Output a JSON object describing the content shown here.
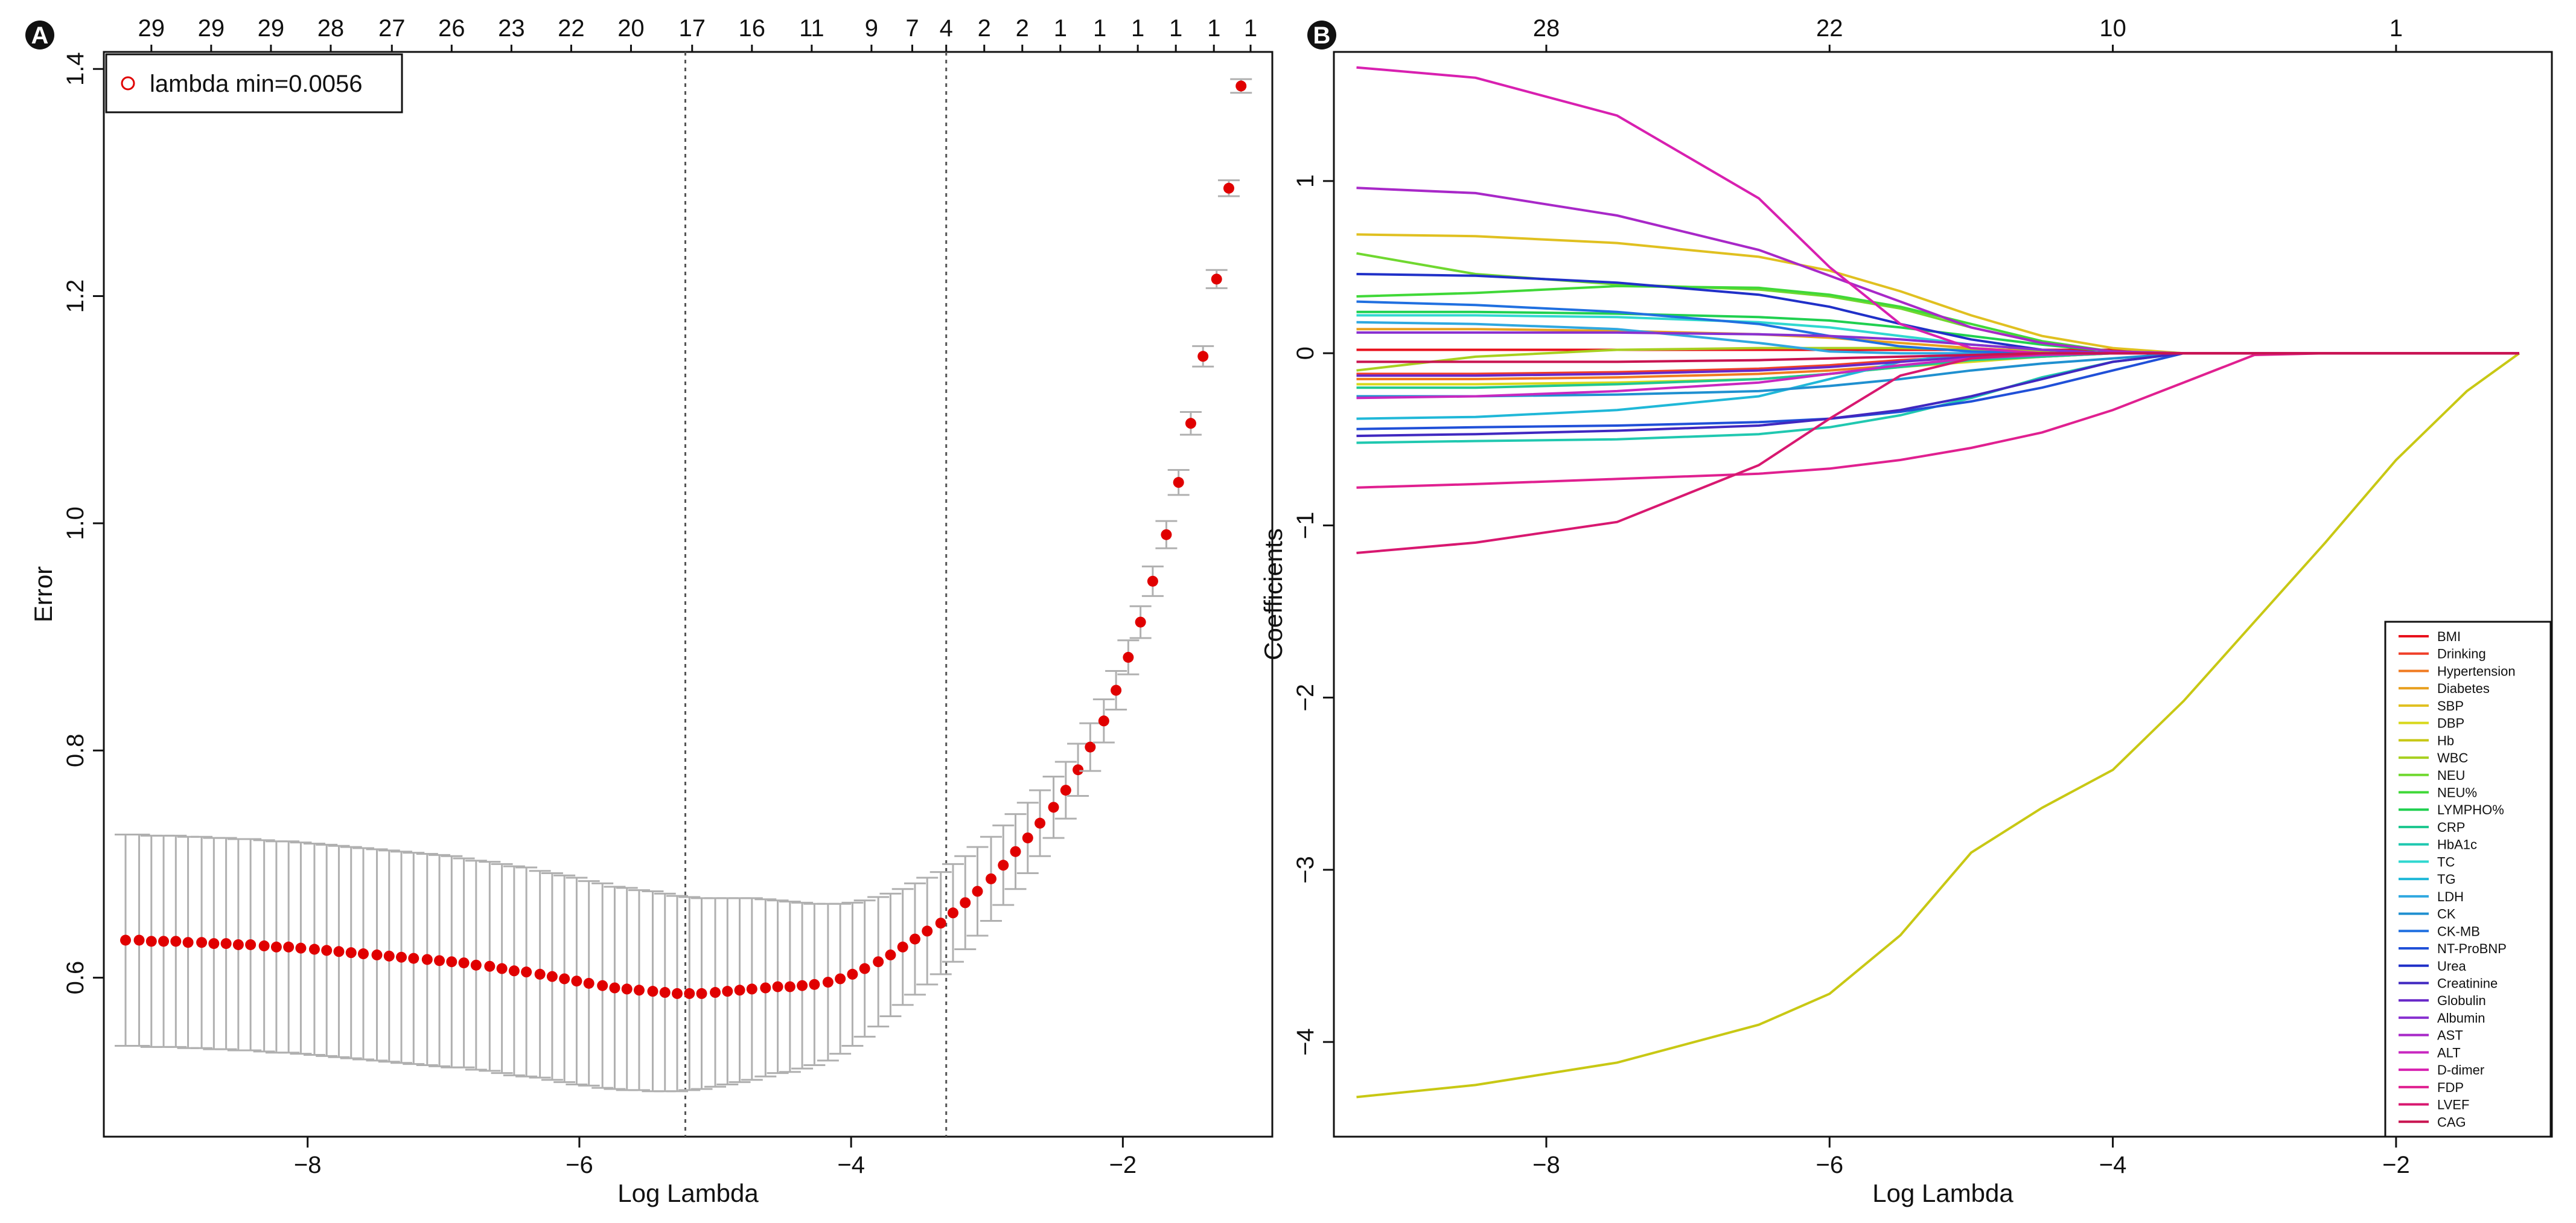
{
  "panels": {
    "a": {
      "label": "A"
    },
    "b": {
      "label": "B"
    }
  },
  "chart_data": [
    {
      "type": "scatter",
      "panel": "A",
      "xlabel": "Log Lambda",
      "ylabel": "Error",
      "xlim": [
        -9.5,
        -0.9
      ],
      "ylim": [
        0.46,
        1.415
      ],
      "x_ticks": [
        -8,
        -6,
        -4,
        -2
      ],
      "y_ticks": [
        0.6,
        0.8,
        1.0,
        1.2,
        1.4
      ],
      "x_tick_labels": [
        "−8",
        "−6",
        "−4",
        "−2"
      ],
      "y_tick_labels": [
        "0.6",
        "0.8",
        "1.0",
        "1.2",
        "1.4"
      ],
      "top_counts": [
        "29",
        "29",
        "29",
        "28",
        "27",
        "26",
        "23",
        "22",
        "20",
        "17",
        "16",
        "11",
        "9",
        "7",
        "4",
        "2",
        "2",
        "1",
        "1",
        "1",
        "1",
        "1",
        "1"
      ],
      "top_count_positions": [
        -9.15,
        -8.71,
        -8.27,
        -7.83,
        -7.38,
        -6.94,
        -6.5,
        -6.06,
        -5.62,
        -5.17,
        -4.73,
        -4.29,
        -3.85,
        -3.55,
        -3.3,
        -3.02,
        -2.74,
        -2.46,
        -2.17,
        -1.89,
        -1.61,
        -1.33,
        -1.06
      ],
      "vlines": [
        -5.22,
        -3.3
      ],
      "legend": {
        "label": "lambda min=0.0056",
        "position": "top-left"
      },
      "points": [
        [
          -9.34,
          0.633,
          0.093
        ],
        [
          -9.24,
          0.633,
          0.093
        ],
        [
          -9.15,
          0.632,
          0.093
        ],
        [
          -9.06,
          0.632,
          0.093
        ],
        [
          -8.97,
          0.632,
          0.093
        ],
        [
          -8.88,
          0.631,
          0.093
        ],
        [
          -8.78,
          0.631,
          0.093
        ],
        [
          -8.69,
          0.63,
          0.093
        ],
        [
          -8.6,
          0.63,
          0.093
        ],
        [
          -8.51,
          0.629,
          0.093
        ],
        [
          -8.42,
          0.629,
          0.093
        ],
        [
          -8.32,
          0.628,
          0.093
        ],
        [
          -8.23,
          0.627,
          0.093
        ],
        [
          -8.14,
          0.627,
          0.093
        ],
        [
          -8.05,
          0.626,
          0.093
        ],
        [
          -7.95,
          0.625,
          0.093
        ],
        [
          -7.86,
          0.624,
          0.093
        ],
        [
          -7.77,
          0.623,
          0.093
        ],
        [
          -7.68,
          0.622,
          0.093
        ],
        [
          -7.59,
          0.621,
          0.093
        ],
        [
          -7.49,
          0.62,
          0.093
        ],
        [
          -7.4,
          0.619,
          0.093
        ],
        [
          -7.31,
          0.618,
          0.093
        ],
        [
          -7.22,
          0.617,
          0.093
        ],
        [
          -7.12,
          0.616,
          0.093
        ],
        [
          -7.03,
          0.615,
          0.093
        ],
        [
          -6.94,
          0.614,
          0.093
        ],
        [
          -6.85,
          0.613,
          0.092
        ],
        [
          -6.76,
          0.611,
          0.092
        ],
        [
          -6.66,
          0.61,
          0.092
        ],
        [
          -6.57,
          0.608,
          0.092
        ],
        [
          -6.48,
          0.606,
          0.092
        ],
        [
          -6.39,
          0.605,
          0.092
        ],
        [
          -6.29,
          0.603,
          0.091
        ],
        [
          -6.2,
          0.601,
          0.091
        ],
        [
          -6.11,
          0.599,
          0.091
        ],
        [
          -6.02,
          0.597,
          0.091
        ],
        [
          -5.93,
          0.595,
          0.09
        ],
        [
          -5.83,
          0.593,
          0.09
        ],
        [
          -5.74,
          0.591,
          0.089
        ],
        [
          -5.65,
          0.59,
          0.089
        ],
        [
          -5.56,
          0.589,
          0.088
        ],
        [
          -5.46,
          0.588,
          0.088
        ],
        [
          -5.37,
          0.587,
          0.087
        ],
        [
          -5.28,
          0.586,
          0.086
        ],
        [
          -5.19,
          0.586,
          0.085
        ],
        [
          -5.1,
          0.586,
          0.084
        ],
        [
          -5.0,
          0.587,
          0.083
        ],
        [
          -4.91,
          0.588,
          0.082
        ],
        [
          -4.82,
          0.589,
          0.081
        ],
        [
          -4.73,
          0.59,
          0.08
        ],
        [
          -4.63,
          0.591,
          0.078
        ],
        [
          -4.54,
          0.592,
          0.076
        ],
        [
          -4.45,
          0.592,
          0.075
        ],
        [
          -4.36,
          0.593,
          0.073
        ],
        [
          -4.27,
          0.594,
          0.071
        ],
        [
          -4.17,
          0.596,
          0.069
        ],
        [
          -4.08,
          0.599,
          0.066
        ],
        [
          -3.99,
          0.603,
          0.063
        ],
        [
          -3.9,
          0.608,
          0.06
        ],
        [
          -3.8,
          0.614,
          0.057
        ],
        [
          -3.71,
          0.62,
          0.054
        ],
        [
          -3.62,
          0.627,
          0.051
        ],
        [
          -3.53,
          0.634,
          0.049
        ],
        [
          -3.44,
          0.641,
          0.047
        ],
        [
          -3.34,
          0.648,
          0.045
        ],
        [
          -3.25,
          0.657,
          0.043
        ],
        [
          -3.16,
          0.666,
          0.041
        ],
        [
          -3.07,
          0.676,
          0.039
        ],
        [
          -2.97,
          0.687,
          0.037
        ],
        [
          -2.88,
          0.699,
          0.035
        ],
        [
          -2.79,
          0.711,
          0.033
        ],
        [
          -2.7,
          0.723,
          0.031
        ],
        [
          -2.61,
          0.736,
          0.029
        ],
        [
          -2.51,
          0.75,
          0.027
        ],
        [
          -2.42,
          0.765,
          0.025
        ],
        [
          -2.33,
          0.783,
          0.023
        ],
        [
          -2.24,
          0.803,
          0.021
        ],
        [
          -2.14,
          0.826,
          0.019
        ],
        [
          -2.05,
          0.853,
          0.017
        ],
        [
          -1.96,
          0.882,
          0.015
        ],
        [
          -1.87,
          0.913,
          0.014
        ],
        [
          -1.78,
          0.949,
          0.013
        ],
        [
          -1.68,
          0.99,
          0.012
        ],
        [
          -1.59,
          1.036,
          0.011
        ],
        [
          -1.5,
          1.088,
          0.01
        ],
        [
          -1.41,
          1.147,
          0.009
        ],
        [
          -1.31,
          1.215,
          0.008
        ],
        [
          -1.22,
          1.295,
          0.007
        ],
        [
          -1.13,
          1.385,
          0.006
        ]
      ]
    },
    {
      "type": "line",
      "panel": "B",
      "xlabel": "Log Lambda",
      "ylabel": "Coefficients",
      "xlim": [
        -9.5,
        -0.9
      ],
      "ylim": [
        -4.55,
        1.75
      ],
      "x_ticks": [
        -8,
        -6,
        -4,
        -2
      ],
      "y_ticks": [
        -4,
        -3,
        -2,
        -1,
        0,
        1
      ],
      "x_tick_labels": [
        "−8",
        "−6",
        "−4",
        "−2"
      ],
      "y_tick_labels": [
        "−4",
        "−3",
        "−2",
        "−1",
        "0",
        "1"
      ],
      "top_counts": [
        "28",
        "22",
        "10",
        "1"
      ],
      "top_count_positions": [
        -8,
        -6,
        -4,
        -2
      ],
      "legend_position": "bottom-right",
      "x": [
        -9.34,
        -8.5,
        -7.5,
        -6.5,
        -6.0,
        -5.5,
        -5.0,
        -4.5,
        -4.0,
        -3.5,
        -3.0,
        -2.5,
        -2.0,
        -1.5,
        -1.13
      ],
      "series": [
        {
          "name": "BMI",
          "color": "#e8101c",
          "values": [
            0.02,
            0.02,
            0.02,
            0.02,
            0.02,
            0.02,
            0.02,
            0.02,
            0.02,
            0,
            0,
            0,
            0,
            0,
            0
          ]
        },
        {
          "name": "Drinking",
          "color": "#f0402a",
          "values": [
            -0.12,
            -0.12,
            -0.11,
            -0.09,
            -0.07,
            -0.04,
            -0.02,
            -0.01,
            0,
            0,
            0,
            0,
            0,
            0,
            0
          ]
        },
        {
          "name": "Hypertension",
          "color": "#f07a20",
          "values": [
            -0.15,
            -0.15,
            -0.14,
            -0.12,
            -0.1,
            -0.07,
            -0.04,
            -0.02,
            0,
            0,
            0,
            0,
            0,
            0,
            0
          ]
        },
        {
          "name": "Diabetes",
          "color": "#e8a020",
          "values": [
            0.14,
            0.14,
            0.13,
            0.11,
            0.09,
            0.06,
            0.03,
            0.01,
            0,
            0,
            0,
            0,
            0,
            0,
            0
          ]
        },
        {
          "name": "SBP",
          "color": "#e0c020",
          "values": [
            0.69,
            0.68,
            0.64,
            0.56,
            0.48,
            0.36,
            0.22,
            0.1,
            0.03,
            0,
            0,
            0,
            0,
            0,
            0
          ]
        },
        {
          "name": "DBP",
          "color": "#d8d81c",
          "values": [
            -0.18,
            -0.18,
            -0.17,
            -0.15,
            -0.12,
            -0.08,
            -0.05,
            -0.02,
            0,
            0,
            0,
            0,
            0,
            0,
            0
          ]
        },
        {
          "name": "Hb",
          "color": "#c8c814",
          "values": [
            -4.32,
            -4.25,
            -4.12,
            -3.9,
            -3.72,
            -3.38,
            -2.9,
            -2.64,
            -2.42,
            -2.02,
            -1.56,
            -1.1,
            -0.62,
            -0.22,
            0
          ]
        },
        {
          "name": "WBC",
          "color": "#a8d020",
          "values": [
            -0.1,
            -0.02,
            0.02,
            0.03,
            0.03,
            0.03,
            0.02,
            0.01,
            0,
            0,
            0,
            0,
            0,
            0,
            0
          ]
        },
        {
          "name": "NEU",
          "color": "#70d830",
          "values": [
            0.58,
            0.46,
            0.4,
            0.37,
            0.33,
            0.26,
            0.15,
            0.06,
            0.01,
            0,
            0,
            0,
            0,
            0,
            0
          ]
        },
        {
          "name": "NEU%",
          "color": "#40d838",
          "values": [
            0.33,
            0.35,
            0.39,
            0.38,
            0.34,
            0.27,
            0.17,
            0.07,
            0.01,
            0,
            0,
            0,
            0,
            0,
            0
          ]
        },
        {
          "name": "LYMPHO%",
          "color": "#20d050",
          "values": [
            0.24,
            0.24,
            0.23,
            0.21,
            0.19,
            0.15,
            0.1,
            0.05,
            0.01,
            0,
            0,
            0,
            0,
            0,
            0
          ]
        },
        {
          "name": "CRP",
          "color": "#20c890",
          "values": [
            -0.2,
            -0.2,
            -0.18,
            -0.15,
            -0.12,
            -0.08,
            -0.04,
            -0.02,
            0,
            0,
            0,
            0,
            0,
            0,
            0
          ]
        },
        {
          "name": "HbA1c",
          "color": "#20c8b0",
          "values": [
            -0.52,
            -0.51,
            -0.5,
            -0.47,
            -0.43,
            -0.36,
            -0.26,
            -0.14,
            -0.05,
            0,
            0,
            0,
            0,
            0,
            0
          ]
        },
        {
          "name": "TC",
          "color": "#30d8d0",
          "values": [
            0.22,
            0.22,
            0.21,
            0.18,
            0.15,
            0.1,
            0.05,
            0.02,
            0,
            0,
            0,
            0,
            0,
            0,
            0
          ]
        },
        {
          "name": "TG",
          "color": "#20b8d8",
          "values": [
            -0.38,
            -0.37,
            -0.33,
            -0.25,
            -0.15,
            -0.05,
            0,
            0,
            0,
            0,
            0,
            0,
            0,
            0,
            0
          ]
        },
        {
          "name": "LDH",
          "color": "#30a8e0",
          "values": [
            0.18,
            0.17,
            0.14,
            0.06,
            0.01,
            0,
            0,
            0,
            0,
            0,
            0,
            0,
            0,
            0,
            0
          ]
        },
        {
          "name": "CK",
          "color": "#2090d0",
          "values": [
            -0.25,
            -0.25,
            -0.24,
            -0.22,
            -0.19,
            -0.15,
            -0.1,
            -0.06,
            -0.03,
            0,
            0,
            0,
            0,
            0,
            0
          ]
        },
        {
          "name": "CK-MB",
          "color": "#2070e0",
          "values": [
            0.3,
            0.28,
            0.24,
            0.17,
            0.1,
            0.04,
            0.01,
            0,
            0,
            0,
            0,
            0,
            0,
            0,
            0
          ]
        },
        {
          "name": "NT-ProBNP",
          "color": "#2050d8",
          "values": [
            -0.44,
            -0.43,
            -0.42,
            -0.4,
            -0.38,
            -0.34,
            -0.28,
            -0.2,
            -0.1,
            0,
            0,
            0,
            0,
            0,
            0
          ]
        },
        {
          "name": "Urea",
          "color": "#2030c8",
          "values": [
            0.46,
            0.45,
            0.41,
            0.34,
            0.27,
            0.17,
            0.08,
            0.02,
            0,
            0,
            0,
            0,
            0,
            0,
            0
          ]
        },
        {
          "name": "Creatinine",
          "color": "#4028c0",
          "values": [
            -0.48,
            -0.47,
            -0.45,
            -0.42,
            -0.38,
            -0.33,
            -0.25,
            -0.15,
            -0.05,
            0,
            0,
            0,
            0,
            0,
            0
          ]
        },
        {
          "name": "Globulin",
          "color": "#6828c8",
          "values": [
            -0.13,
            -0.13,
            -0.12,
            -0.1,
            -0.08,
            -0.05,
            -0.02,
            -0.01,
            0,
            0,
            0,
            0,
            0,
            0,
            0
          ]
        },
        {
          "name": "Albumin",
          "color": "#8830d0",
          "values": [
            0.12,
            0.12,
            0.12,
            0.11,
            0.1,
            0.08,
            0.05,
            0.02,
            0,
            0,
            0,
            0,
            0,
            0,
            0
          ]
        },
        {
          "name": "AST",
          "color": "#a828c8",
          "values": [
            0.96,
            0.93,
            0.8,
            0.6,
            0.45,
            0.3,
            0.15,
            0.06,
            0.01,
            0,
            0,
            0,
            0,
            0,
            0
          ]
        },
        {
          "name": "ALT",
          "color": "#c828c0",
          "values": [
            -0.26,
            -0.25,
            -0.22,
            -0.17,
            -0.12,
            -0.07,
            -0.03,
            -0.01,
            0,
            0,
            0,
            0,
            0,
            0,
            0
          ]
        },
        {
          "name": "D-dimer",
          "color": "#d820b0",
          "values": [
            1.66,
            1.6,
            1.38,
            0.9,
            0.5,
            0.17,
            0.03,
            0,
            0,
            0,
            0,
            0,
            0,
            0,
            0
          ]
        },
        {
          "name": "FDP",
          "color": "#e02090",
          "values": [
            -0.78,
            -0.76,
            -0.73,
            -0.7,
            -0.67,
            -0.62,
            -0.55,
            -0.46,
            -0.33,
            -0.17,
            -0.01,
            0,
            0,
            0,
            0
          ]
        },
        {
          "name": "LVEF",
          "color": "#d81870",
          "values": [
            -1.16,
            -1.1,
            -0.98,
            -0.65,
            -0.38,
            -0.13,
            -0.03,
            0,
            0,
            0,
            0,
            0,
            0,
            0,
            0
          ]
        },
        {
          "name": "CAG",
          "color": "#c81450",
          "values": [
            -0.05,
            -0.05,
            -0.05,
            -0.04,
            -0.03,
            -0.02,
            -0.01,
            0,
            0,
            0,
            0,
            0,
            0,
            0,
            0
          ]
        }
      ]
    }
  ]
}
